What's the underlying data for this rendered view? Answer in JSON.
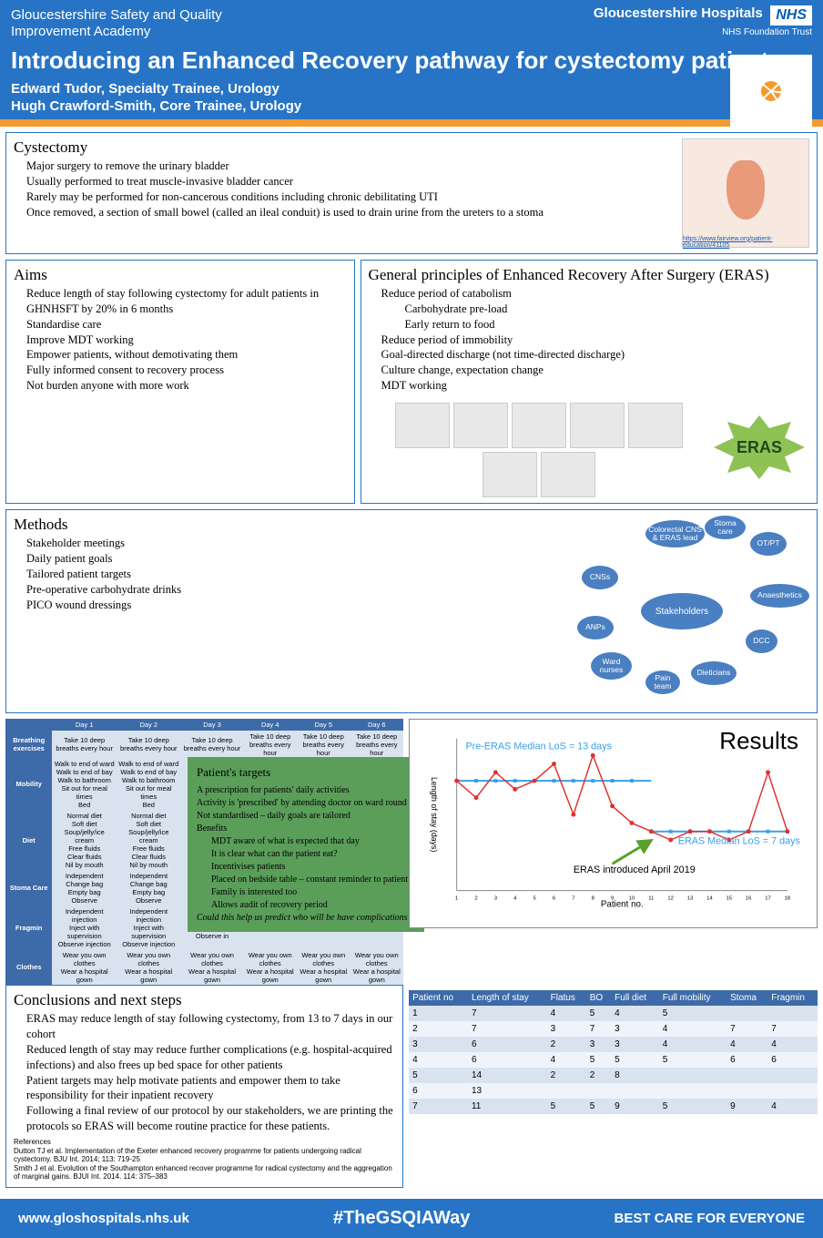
{
  "header": {
    "academy_l1": "Gloucestershire Safety and Quality",
    "academy_l2": "Improvement Academy",
    "nhs_hospitals": "Gloucestershire Hospitals",
    "nhs_logo": "NHS",
    "nhs_trust": "NHS Foundation Trust",
    "title": "Introducing an Enhanced Recovery pathway for cystectomy patients",
    "author1": "Edward Tudor, Specialty Trainee, Urology",
    "author2": "Hugh Crawford-Smith, Core Trainee, Urology"
  },
  "cystectomy": {
    "heading": "Cystectomy",
    "items": [
      "Major surgery to remove the urinary bladder",
      "Usually performed to treat muscle-invasive bladder cancer",
      "Rarely may be performed for non-cancerous conditions including chronic debilitating UTI",
      "Once removed, a section of small bowel (called an ileal conduit) is used to drain urine from the ureters to a stoma"
    ],
    "img_link": "https://www.fairview.org/patient-education/41105"
  },
  "aims": {
    "heading": "Aims",
    "items": [
      "Reduce length of stay following cystectomy for adult patients in GHNHSFT by 20% in 6 months",
      "Standardise care",
      "Improve MDT working",
      "Empower patients, without demotivating them",
      "Fully informed consent to recovery process",
      "Not burden anyone with more work"
    ]
  },
  "eras": {
    "heading": "General principles of Enhanced Recovery After Surgery (ERAS)",
    "items": [
      "Reduce period of catabolism",
      "Carbohydrate pre-load",
      "Early return to food",
      "Reduce period of immobility",
      "Goal-directed discharge (not time-directed discharge)",
      "Culture change, expectation change",
      "MDT working"
    ],
    "burst": "ERAS"
  },
  "methods": {
    "heading": "Methods",
    "items": [
      "Stakeholder meetings",
      "Daily patient goals",
      "Tailored patient targets",
      "Pre-operative carbohydrate drinks",
      "PICO wound dressings"
    ],
    "center": "Stakeholders",
    "nodes": [
      "Colorectal CNS & ERAS lead",
      "Stoma care",
      "OT/PT",
      "Anaesthetics",
      "DCC",
      "Dieticians",
      "Pain team",
      "Ward nurses",
      "ANPs",
      "CNSs"
    ]
  },
  "daily_targets": {
    "days": [
      "Day 1",
      "Day 2",
      "Day 3",
      "Day 4",
      "Day 5",
      "Day 6"
    ],
    "rows": [
      {
        "h": "Breathing exercises",
        "c": [
          "Take 10 deep breaths every hour",
          "Take 10 deep breaths every hour",
          "Take 10 deep breaths every hour",
          "Take 10 deep breaths every hour",
          "Take 10 deep breaths every hour",
          "Take 10 deep breaths every hour"
        ]
      },
      {
        "h": "Mobility",
        "c": [
          "Walk to end of ward\nWalk to end of bay\nWalk to bathroom\nSit out for meal times\nBed",
          "Walk to end of ward\nWalk to end of bay\nWalk to bathroom\nSit out for meal times\nBed",
          "Walk to end\nWalk to ba\nSit out for m\nBe",
          "",
          "",
          ""
        ]
      },
      {
        "h": "Diet",
        "c": [
          "Normal diet\nSoft diet\nSoup/jelly/ice cream\nFree fluids\nClear fluids\nNil by mouth",
          "Normal diet\nSoft diet\nSoup/jelly/ice cream\nFree fluids\nClear fluids\nNil by mouth",
          "Normal\nSoft d\nSoup/jelly/\nFree fl\nClear fl\nNil by m",
          "",
          "",
          ""
        ]
      },
      {
        "h": "Stoma Care",
        "c": [
          "Independent\nChange bag\nEmpty bag\nObserve",
          "Independent\nChange bag\nEmpty bag\nObserve",
          "Indepen\nChange\nEmpty\nObser",
          "",
          "",
          ""
        ]
      },
      {
        "h": "Fragmin",
        "c": [
          "Independent injection\nInject with supervision\nObserve injection",
          "Independent injection\nInject with supervision\nObserve injection",
          "Independent inj\nInject with su\nObserve in",
          "",
          "",
          ""
        ]
      },
      {
        "h": "Clothes",
        "c": [
          "Wear you own clothes\nWear a hospital gown",
          "Wear you own clothes\nWear a hospital gown",
          "Wear you own clothes\nWear a hospital gown",
          "Wear you own clothes\nWear a hospital gown",
          "Wear you own clothes\nWear a hospital gown",
          "Wear you own clothes\nWear a hospital gown"
        ]
      }
    ]
  },
  "patient_targets": {
    "heading": "Patient's targets",
    "lines": [
      "A prescription for patients' daily activities",
      "Activity is 'prescribed' by attending doctor on ward round",
      "Not standardised – daily goals are tailored",
      "Benefits",
      "MDT aware of what is expected that day",
      "It is clear what can the patient eat?",
      "Incentivises patients",
      "Placed on bedside table – constant reminder to patient",
      "Family is interested too",
      "Allows audit of recovery period"
    ],
    "italic": "Could this help us predict who will be have complications?"
  },
  "results": {
    "title": "Results",
    "pre_label": "Pre-ERAS Median LoS = 13 days",
    "post_label": "ERAS Median LoS = 7 days",
    "intro_label": "ERAS introduced April 2019",
    "xlabel": "Patient no.",
    "ylabel": "Length of stay (days)",
    "pre_median": 13,
    "post_median": 7,
    "y_max": 18,
    "series": [
      13,
      11,
      14,
      12,
      13,
      15,
      9,
      16,
      10,
      8,
      7,
      6,
      7,
      7,
      6,
      7,
      14,
      7
    ],
    "line_color": "#e03030",
    "median_color": "#3aa0e8"
  },
  "results_table": {
    "headers": [
      "Patient no",
      "Length of stay",
      "Flatus",
      "BO",
      "Full diet",
      "Full mobility",
      "Stoma",
      "Fragmin"
    ],
    "rows": [
      [
        "1",
        "7",
        "4",
        "5",
        "4",
        "5",
        "",
        ""
      ],
      [
        "2",
        "7",
        "3",
        "7",
        "3",
        "4",
        "7",
        "7"
      ],
      [
        "3",
        "6",
        "2",
        "3",
        "3",
        "4",
        "4",
        "4"
      ],
      [
        "4",
        "6",
        "4",
        "5",
        "5",
        "5",
        "6",
        "6"
      ],
      [
        "5",
        "14",
        "2",
        "2",
        "8",
        "",
        "",
        ""
      ],
      [
        "6",
        "13",
        "",
        "",
        "",
        "",
        "",
        ""
      ],
      [
        "7",
        "11",
        "5",
        "5",
        "9",
        "5",
        "9",
        "4"
      ]
    ]
  },
  "conclusions": {
    "heading": "Conclusions and next steps",
    "items": [
      "ERAS may reduce length of stay following cystectomy, from 13 to 7 days in our cohort",
      "Reduced length of stay may reduce further complications (e.g. hospital-acquired infections) and also frees up bed space for other patients",
      "Patient targets may help motivate patients and empower them to take responsibility for their inpatient recovery",
      "Following a final review of our protocol by our stakeholders, we are printing the protocols so ERAS will become routine practice for these patients."
    ]
  },
  "refs": {
    "heading": "References",
    "r1": "Dutton TJ et al. Implementation of the Exeter enhanced recovery programme for patients undergoing radical cystectomy. BJU Int. 2014; 113: 719-25",
    "r2": "Smith J et al. Evolution of the Southampton enhanced recover programme for radical cystectomy and the aggregation of marginal gains. BJUI Int. 2014. 114: 375–383"
  },
  "footer": {
    "url": "www.gloshospitals.nhs.uk",
    "hashtag": "#TheGSQIAWay",
    "slogan": "BEST CARE FOR EVERYONE"
  }
}
